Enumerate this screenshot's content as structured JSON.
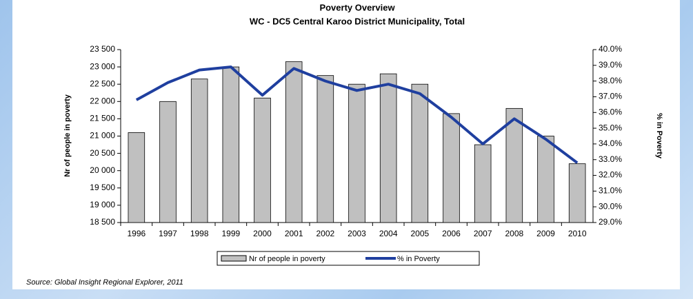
{
  "chart_data": {
    "type": "bar_line",
    "title": "Poverty Overview",
    "subtitle": "WC - DC5 Central Karoo District Municipality,  Total",
    "y_label": "Nr of people in poverty",
    "y2_label": "% in Poverty",
    "source": "Source: Global Insight Regional Explorer, 2011",
    "categories": [
      "1996",
      "1997",
      "1998",
      "1999",
      "2000",
      "2001",
      "2002",
      "2003",
      "2004",
      "2005",
      "2006",
      "2007",
      "2008",
      "2009",
      "2010"
    ],
    "series": [
      {
        "name": "Nr of people in poverty",
        "type": "bar",
        "color": "#c0c0c0",
        "values": [
          21100,
          22000,
          22650,
          23000,
          22100,
          23150,
          22750,
          22500,
          22800,
          22500,
          21650,
          20750,
          21800,
          21000,
          20200
        ]
      },
      {
        "name": "% in Poverty",
        "type": "line",
        "axis": "y2",
        "color": "#1f3f9f",
        "values": [
          36.8,
          37.9,
          38.7,
          38.9,
          37.1,
          38.8,
          38.0,
          37.4,
          37.8,
          37.2,
          35.7,
          34.0,
          35.6,
          34.3,
          32.8
        ]
      }
    ],
    "ylim": [
      18500,
      23500
    ],
    "yticks": [
      {
        "value": 18500,
        "label": "18 500"
      },
      {
        "value": 19000,
        "label": "19 000"
      },
      {
        "value": 19500,
        "label": "19 500"
      },
      {
        "value": 20000,
        "label": "20 000"
      },
      {
        "value": 20500,
        "label": "20 500"
      },
      {
        "value": 21000,
        "label": "21 000"
      },
      {
        "value": 21500,
        "label": "21 500"
      },
      {
        "value": 22000,
        "label": "22 000"
      },
      {
        "value": 22500,
        "label": "22 500"
      },
      {
        "value": 23000,
        "label": "23 000"
      },
      {
        "value": 23500,
        "label": "23 500"
      }
    ],
    "y2lim": [
      29,
      40
    ],
    "y2ticks": [
      {
        "value": 29,
        "label": "29.0%"
      },
      {
        "value": 30,
        "label": "30.0%"
      },
      {
        "value": 31,
        "label": "31.0%"
      },
      {
        "value": 32,
        "label": "32.0%"
      },
      {
        "value": 33,
        "label": "33.0%"
      },
      {
        "value": 34,
        "label": "34.0%"
      },
      {
        "value": 35,
        "label": "35.0%"
      },
      {
        "value": 36,
        "label": "36.0%"
      },
      {
        "value": 37,
        "label": "37.0%"
      },
      {
        "value": 38,
        "label": "38.0%"
      },
      {
        "value": 39,
        "label": "39.0%"
      },
      {
        "value": 40,
        "label": "40.0%"
      }
    ]
  }
}
